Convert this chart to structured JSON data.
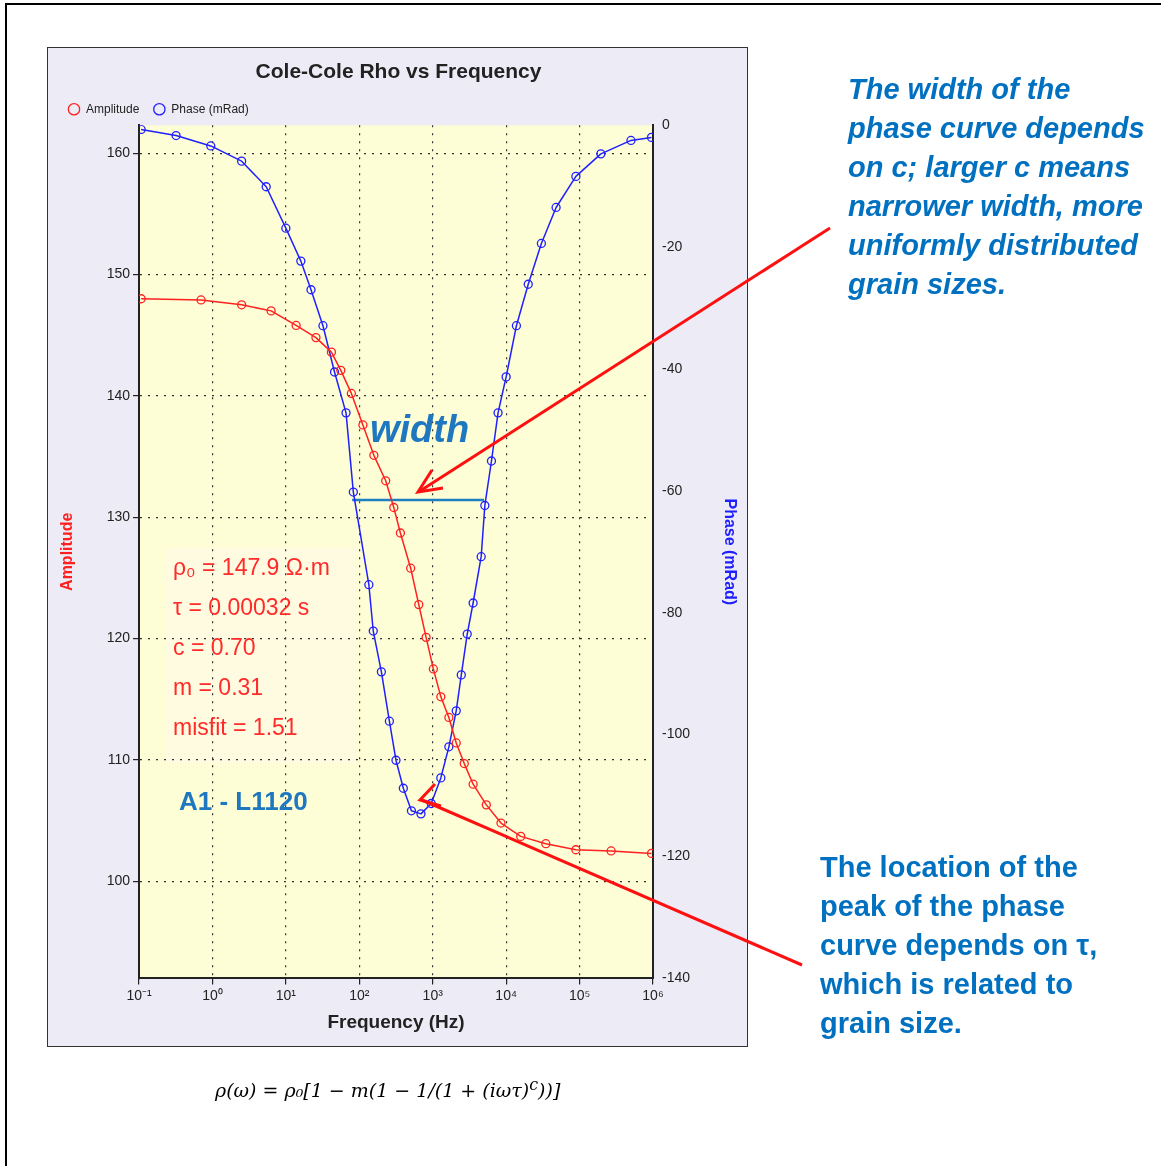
{
  "chart_data": {
    "type": "line",
    "title": "Cole-Cole Rho vs Frequency",
    "xlabel": "Frequency (Hz)",
    "ylabel": "Amplitude",
    "y2label": "Phase (mRad)",
    "log": "x",
    "grid": true,
    "legend": "top left",
    "marker": "circle",
    "xlim": [
      0.1,
      1000000
    ],
    "xticks": [
      {
        "value": 0.1,
        "label": "10⁻¹"
      },
      {
        "value": 1,
        "label": "10⁰"
      },
      {
        "value": 10,
        "label": "10¹"
      },
      {
        "value": 100,
        "label": "10²"
      },
      {
        "value": 1000,
        "label": "10³"
      },
      {
        "value": 10000,
        "label": "10⁴"
      },
      {
        "value": 100000,
        "label": "10⁵"
      },
      {
        "value": 1000000,
        "label": "10⁶"
      }
    ],
    "ylim": [
      92,
      162.3
    ],
    "yticks": [
      100,
      110,
      120,
      130,
      140,
      150,
      160
    ],
    "y2lim": [
      -140,
      0
    ],
    "y2ticks": [
      -140,
      -120,
      -100,
      -80,
      -60,
      -40,
      -20,
      0
    ],
    "series": [
      {
        "name": "Amplitude",
        "color": "#ff2020",
        "x": [
          0.107,
          0.7,
          2.5,
          6.3,
          13.8,
          25.7,
          41.7,
          56,
          78,
          112,
          158,
          229,
          295,
          363,
          501,
          646,
          813,
          1020,
          1290,
          1660,
          2090,
          2690,
          3550,
          5370,
          8510,
          15800,
          34700,
          89100,
          269000,
          955000
        ],
        "values": [
          148.0,
          147.9,
          147.5,
          147.0,
          145.8,
          144.8,
          143.6,
          142.1,
          140.2,
          137.6,
          135.1,
          133.0,
          130.8,
          128.7,
          125.8,
          122.8,
          120.1,
          117.5,
          115.2,
          113.5,
          111.4,
          109.7,
          108.0,
          106.3,
          104.8,
          103.7,
          103.1,
          102.6,
          102.5,
          102.3
        ]
      },
      {
        "name": "Phase (mRad)",
        "color": "#2020ff",
        "axis": "y2",
        "x": [
          0.107,
          0.32,
          0.95,
          2.5,
          5.4,
          10,
          16,
          22,
          32,
          46,
          66,
          83,
          135,
          155,
          200,
          257,
          316,
          398,
          513,
          692,
          955,
          1290,
          1660,
          2090,
          2450,
          2950,
          3550,
          4570,
          5130,
          6310,
          7760,
          10000,
          13800,
          20000,
          30200,
          47900,
          89100,
          195000,
          501000,
          955000
        ],
        "values": [
          -0.7,
          -1.7,
          -3.4,
          -5.9,
          -10.1,
          -16.9,
          -22.3,
          -27.0,
          -32.9,
          -40.5,
          -47.2,
          -60.2,
          -75.4,
          -83.0,
          -89.7,
          -97.8,
          -104.2,
          -108.8,
          -112.5,
          -113.0,
          -111.3,
          -107.1,
          -102.0,
          -96.1,
          -90.2,
          -83.5,
          -78.4,
          -70.8,
          -62.4,
          -55.1,
          -47.2,
          -41.3,
          -32.9,
          -26.1,
          -19.4,
          -13.5,
          -8.4,
          -4.7,
          -2.5,
          -2.0
        ]
      },
      {
        "color": "#1f7fc0",
        "axis": "y2",
        "marker": "none",
        "x": [
          80,
          5000
        ],
        "values": [
          -61.5,
          -61.5
        ]
      }
    ],
    "annotations": [
      "The width of the phase curve depends on c; larger c means narrower width, more uniformly distributed grain sizes.",
      "width",
      "ρ₀ = 147.9 Ω·m",
      "τ = 0.00032 s",
      "c = 0.70",
      "m = 0.31",
      "misfit = 1.51",
      "A1 - L1120",
      "The location of the peak of the phase curve depends on τ, which is related to grain size.",
      "ρ(ω) = ρ₀[1 − m(1 − 1/(1 + (iωτ)$^{c}$))]"
    ]
  }
}
